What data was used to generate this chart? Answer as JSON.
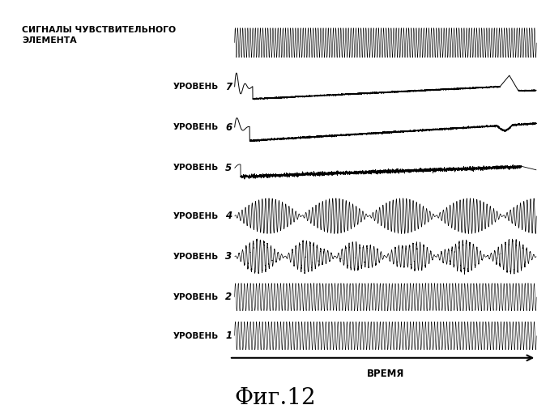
{
  "title": "Фиг.12",
  "xlabel": "ВРЕМЯ",
  "background_color": "#ffffff",
  "text_color": "#000000",
  "header_label": "СИГНАЛЫ ЧУВСТВИТЕЛЬНОГО\nЭЛЕМЕНТА",
  "level_label": "УРОВЕНЬ",
  "n_points": 4000
}
